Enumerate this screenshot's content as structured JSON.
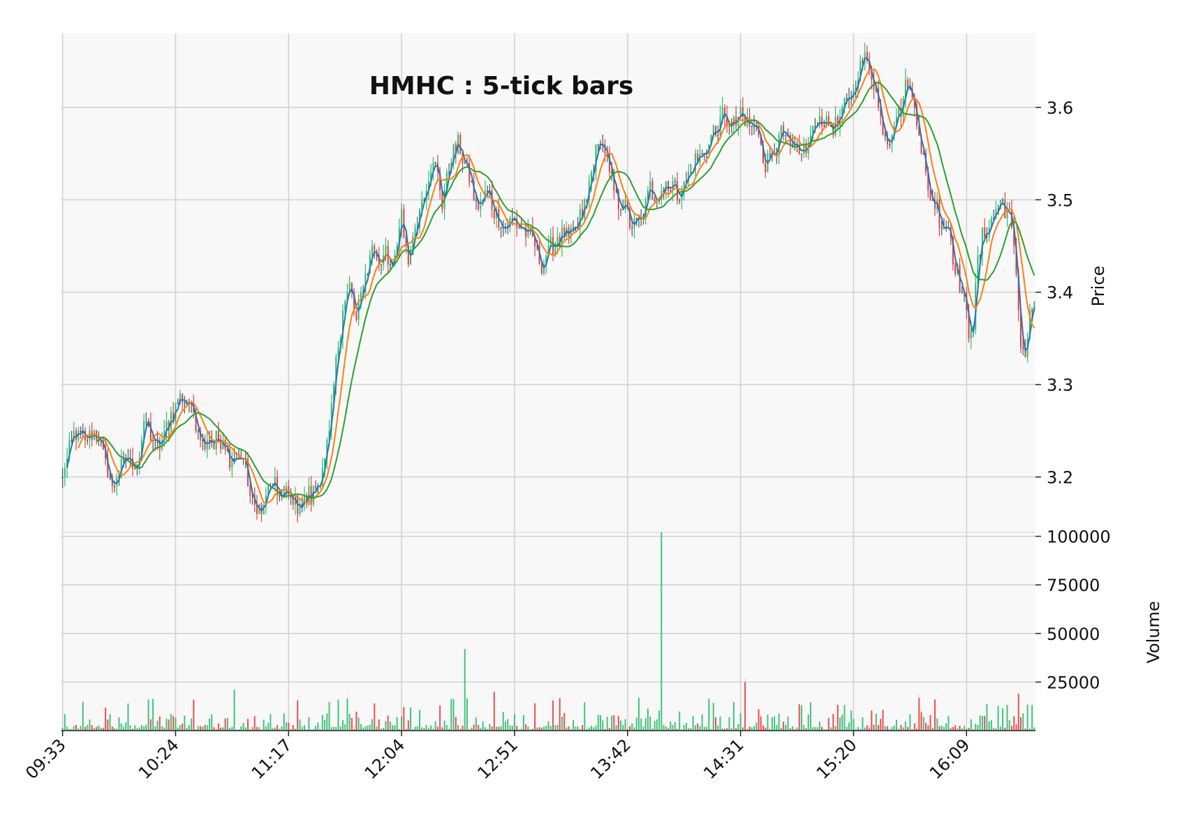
{
  "chart_data": {
    "type": "candlestick",
    "title": "HMHC : 5-tick bars",
    "ylabel": "Price",
    "volume_ylabel": "Volume",
    "price_ylim": [
      3.14,
      3.68
    ],
    "volume_ylim": [
      0,
      102000
    ],
    "price_ticks": [
      "3.2",
      "3.3",
      "3.4",
      "3.5",
      "3.6"
    ],
    "volume_ticks": [
      "25000",
      "50000",
      "75000",
      "100000"
    ],
    "x_tick_labels": [
      "09:33",
      "10:24",
      "11:17",
      "12:04",
      "12:51",
      "13:42",
      "14:31",
      "15:20",
      "16:09"
    ],
    "n_bars": 431,
    "bars_per_tick": 50,
    "grid": true,
    "colors": {
      "up": "#2ebd6e",
      "down": "#ef3b3b",
      "ma_fast": "#1f77b4",
      "ma_mid": "#ff7f0e",
      "ma_slow": "#2ca02c",
      "panel_bg": "#f8f8f8",
      "grid": "#d0d0d0"
    },
    "close_path": [
      [
        0,
        3.2
      ],
      [
        5,
        3.25
      ],
      [
        10,
        3.24
      ],
      [
        15,
        3.25
      ],
      [
        22,
        3.19
      ],
      [
        28,
        3.22
      ],
      [
        33,
        3.21
      ],
      [
        37,
        3.26
      ],
      [
        42,
        3.23
      ],
      [
        47,
        3.26
      ],
      [
        52,
        3.29
      ],
      [
        56,
        3.28
      ],
      [
        62,
        3.24
      ],
      [
        68,
        3.24
      ],
      [
        74,
        3.22
      ],
      [
        80,
        3.22
      ],
      [
        84,
        3.17
      ],
      [
        88,
        3.16
      ],
      [
        92,
        3.19
      ],
      [
        98,
        3.18
      ],
      [
        104,
        3.17
      ],
      [
        110,
        3.18
      ],
      [
        114,
        3.2
      ],
      [
        118,
        3.24
      ],
      [
        121,
        3.32
      ],
      [
        124,
        3.38
      ],
      [
        127,
        3.41
      ],
      [
        130,
        3.37
      ],
      [
        134,
        3.42
      ],
      [
        137,
        3.45
      ],
      [
        140,
        3.43
      ],
      [
        143,
        3.45
      ],
      [
        146,
        3.42
      ],
      [
        150,
        3.48
      ],
      [
        153,
        3.43
      ],
      [
        156,
        3.47
      ],
      [
        159,
        3.5
      ],
      [
        162,
        3.53
      ],
      [
        165,
        3.54
      ],
      [
        168,
        3.5
      ],
      [
        172,
        3.55
      ],
      [
        176,
        3.56
      ],
      [
        180,
        3.52
      ],
      [
        184,
        3.49
      ],
      [
        188,
        3.51
      ],
      [
        192,
        3.48
      ],
      [
        196,
        3.47
      ],
      [
        200,
        3.48
      ],
      [
        204,
        3.47
      ],
      [
        208,
        3.46
      ],
      [
        212,
        3.43
      ],
      [
        216,
        3.45
      ],
      [
        220,
        3.46
      ],
      [
        224,
        3.46
      ],
      [
        228,
        3.47
      ],
      [
        232,
        3.5
      ],
      [
        236,
        3.55
      ],
      [
        238,
        3.57
      ],
      [
        240,
        3.55
      ],
      [
        243,
        3.52
      ],
      [
        246,
        3.5
      ],
      [
        249,
        3.49
      ],
      [
        252,
        3.47
      ],
      [
        256,
        3.48
      ],
      [
        260,
        3.51
      ],
      [
        264,
        3.51
      ],
      [
        268,
        3.52
      ],
      [
        272,
        3.51
      ],
      [
        276,
        3.52
      ],
      [
        280,
        3.54
      ],
      [
        284,
        3.55
      ],
      [
        288,
        3.57
      ],
      [
        292,
        3.59
      ],
      [
        296,
        3.58
      ],
      [
        300,
        3.59
      ],
      [
        304,
        3.58
      ],
      [
        308,
        3.57
      ],
      [
        311,
        3.54
      ],
      [
        314,
        3.55
      ],
      [
        318,
        3.57
      ],
      [
        322,
        3.56
      ],
      [
        326,
        3.55
      ],
      [
        330,
        3.56
      ],
      [
        334,
        3.59
      ],
      [
        338,
        3.58
      ],
      [
        342,
        3.58
      ],
      [
        346,
        3.6
      ],
      [
        350,
        3.62
      ],
      [
        352,
        3.64
      ],
      [
        354,
        3.65
      ],
      [
        356,
        3.65
      ],
      [
        359,
        3.63
      ],
      [
        362,
        3.59
      ],
      [
        365,
        3.56
      ],
      [
        368,
        3.59
      ],
      [
        371,
        3.6
      ],
      [
        374,
        3.63
      ],
      [
        377,
        3.6
      ],
      [
        380,
        3.56
      ],
      [
        383,
        3.51
      ],
      [
        386,
        3.5
      ],
      [
        389,
        3.47
      ],
      [
        392,
        3.47
      ],
      [
        395,
        3.43
      ],
      [
        398,
        3.4
      ],
      [
        401,
        3.36
      ],
      [
        403,
        3.37
      ],
      [
        405,
        3.43
      ],
      [
        407,
        3.46
      ],
      [
        410,
        3.47
      ],
      [
        413,
        3.49
      ],
      [
        416,
        3.5
      ],
      [
        419,
        3.48
      ],
      [
        422,
        3.42
      ],
      [
        424,
        3.35
      ],
      [
        426,
        3.33
      ],
      [
        428,
        3.37
      ],
      [
        430,
        3.39
      ]
    ],
    "volume_spikes": [
      [
        178,
        42000
      ],
      [
        265,
        102000
      ],
      [
        302,
        25000
      ],
      [
        76,
        21000
      ],
      [
        423,
        19000
      ],
      [
        191,
        20000
      ]
    ]
  }
}
